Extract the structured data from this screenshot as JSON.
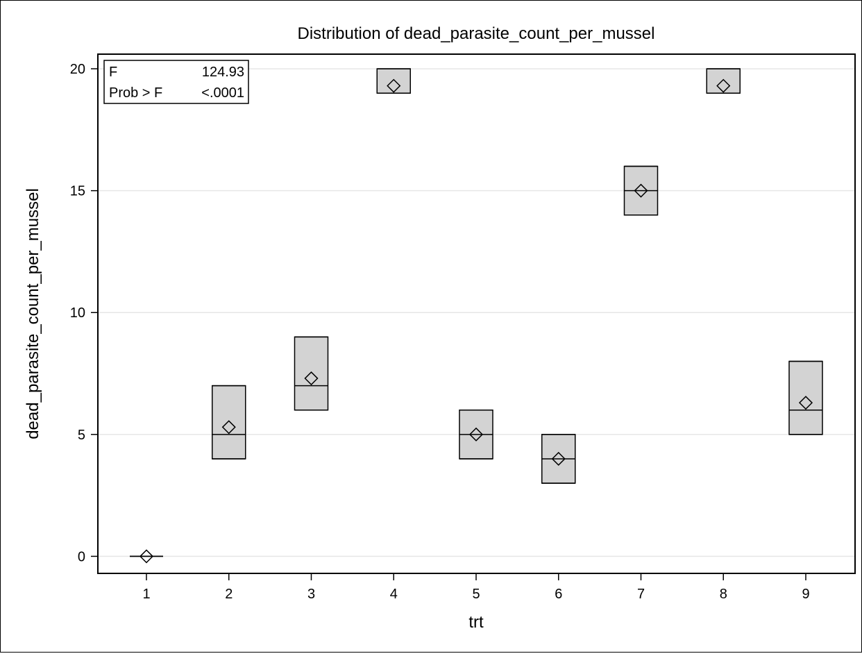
{
  "chart_data": {
    "type": "box",
    "title": "Distribution of dead_parasite_count_per_mussel",
    "xlabel": "trt",
    "ylabel": "dead_parasite_count_per_mussel",
    "categories": [
      "1",
      "2",
      "3",
      "4",
      "5",
      "6",
      "7",
      "8",
      "9"
    ],
    "ylim": [
      -0.7,
      20.6
    ],
    "yticks": [
      0,
      5,
      10,
      15,
      20
    ],
    "grid": "horizontal",
    "boxes": [
      {
        "category": "1",
        "min": 0,
        "q1": 0,
        "median": 0,
        "q3": 0,
        "max": 0,
        "mean": 0
      },
      {
        "category": "2",
        "min": 4,
        "q1": 4,
        "median": 5,
        "q3": 7,
        "max": 7,
        "mean": 5.3
      },
      {
        "category": "3",
        "min": 6,
        "q1": 6,
        "median": 7,
        "q3": 9,
        "max": 9,
        "mean": 7.3
      },
      {
        "category": "4",
        "min": 19,
        "q1": 19,
        "median": 19,
        "q3": 20,
        "max": 20,
        "mean": 19.3
      },
      {
        "category": "5",
        "min": 4,
        "q1": 4,
        "median": 5,
        "q3": 6,
        "max": 6,
        "mean": 5.0
      },
      {
        "category": "6",
        "min": 3,
        "q1": 3,
        "median": 4,
        "q3": 5,
        "max": 5,
        "mean": 4.0
      },
      {
        "category": "7",
        "min": 14,
        "q1": 14,
        "median": 15,
        "q3": 16,
        "max": 16,
        "mean": 15.0
      },
      {
        "category": "8",
        "min": 19,
        "q1": 19,
        "median": 19,
        "q3": 20,
        "max": 20,
        "mean": 19.3
      },
      {
        "category": "9",
        "min": 5,
        "q1": 5,
        "median": 6,
        "q3": 8,
        "max": 8,
        "mean": 6.3
      }
    ],
    "inset_table": {
      "rows": [
        {
          "label": "F",
          "value": "124.93"
        },
        {
          "label": "Prob > F",
          "value": "<.0001"
        }
      ],
      "placement": "top-left"
    },
    "colors": {
      "box_fill": "#d3d3d3",
      "box_stroke": "#000000",
      "grid": "#e6e6e6",
      "axis": "#000000"
    }
  }
}
